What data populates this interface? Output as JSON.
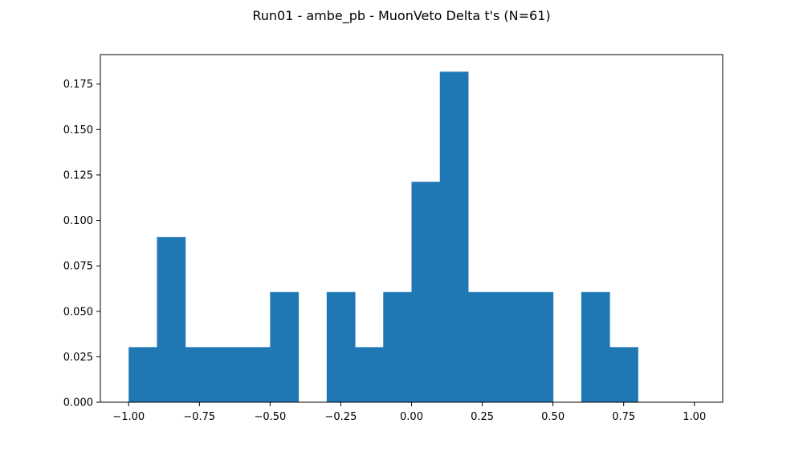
{
  "chart_data": {
    "type": "bar",
    "title": "Run01 - ambe_pb - MuonVeto Delta t's (N=61)",
    "xlabel": "",
    "ylabel": "",
    "xlim": [
      -1.1,
      1.1
    ],
    "ylim": [
      0,
      0.1912
    ],
    "bin_edges": [
      -1.0,
      -0.9,
      -0.8,
      -0.7,
      -0.6,
      -0.5,
      -0.4,
      -0.3,
      -0.2,
      -0.1,
      0.0,
      0.1,
      0.2,
      0.3,
      0.4,
      0.5,
      0.6,
      0.7,
      0.8,
      0.9,
      1.0
    ],
    "values": [
      0.0303,
      0.0909,
      0.0303,
      0.0303,
      0.0303,
      0.0606,
      0.0,
      0.0606,
      0.0303,
      0.0606,
      0.1212,
      0.1818,
      0.0606,
      0.0606,
      0.0606,
      0.0,
      0.0606,
      0.0303,
      0.0,
      0.0
    ],
    "bar_color": "#1f77b4",
    "grid": false,
    "x_ticks": [
      {
        "value": -1.0,
        "label": "−1.00"
      },
      {
        "value": -0.75,
        "label": "−0.75"
      },
      {
        "value": -0.5,
        "label": "−0.50"
      },
      {
        "value": -0.25,
        "label": "−0.25"
      },
      {
        "value": 0.0,
        "label": "0.00"
      },
      {
        "value": 0.25,
        "label": "0.25"
      },
      {
        "value": 0.5,
        "label": "0.50"
      },
      {
        "value": 0.75,
        "label": "0.75"
      },
      {
        "value": 1.0,
        "label": "1.00"
      }
    ],
    "y_ticks": [
      {
        "value": 0.0,
        "label": "0.000"
      },
      {
        "value": 0.025,
        "label": "0.025"
      },
      {
        "value": 0.05,
        "label": "0.050"
      },
      {
        "value": 0.075,
        "label": "0.075"
      },
      {
        "value": 0.1,
        "label": "0.100"
      },
      {
        "value": 0.125,
        "label": "0.125"
      },
      {
        "value": 0.15,
        "label": "0.150"
      },
      {
        "value": 0.175,
        "label": "0.175"
      }
    ]
  }
}
